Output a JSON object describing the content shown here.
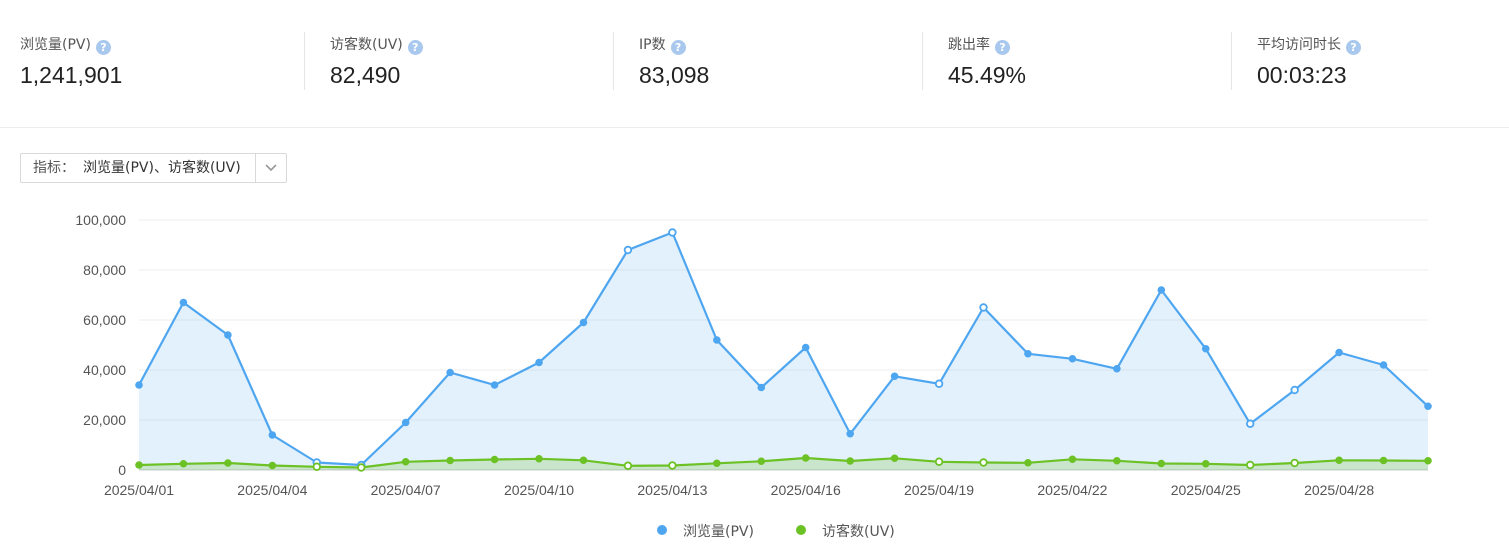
{
  "stats": [
    {
      "label": "浏览量(PV)",
      "value": "1,241,901"
    },
    {
      "label": "访客数(UV)",
      "value": "82,490"
    },
    {
      "label": "IP数",
      "value": "83,098"
    },
    {
      "label": "跳出率",
      "value": "45.49%"
    },
    {
      "label": "平均访问时长",
      "value": "00:03:23"
    }
  ],
  "help_icon_glyph": "?",
  "metric_select": {
    "prefix": "指标：",
    "value": "浏览量(PV)、访客数(UV)"
  },
  "chart_data": {
    "type": "area",
    "x": [
      "2025/04/01",
      "2025/04/02",
      "2025/04/03",
      "2025/04/04",
      "2025/04/05",
      "2025/04/06",
      "2025/04/07",
      "2025/04/08",
      "2025/04/09",
      "2025/04/10",
      "2025/04/11",
      "2025/04/12",
      "2025/04/13",
      "2025/04/14",
      "2025/04/15",
      "2025/04/16",
      "2025/04/17",
      "2025/04/18",
      "2025/04/19",
      "2025/04/20",
      "2025/04/21",
      "2025/04/22",
      "2025/04/23",
      "2025/04/24",
      "2025/04/25",
      "2025/04/26",
      "2025/04/27",
      "2025/04/28",
      "2025/04/29",
      "2025/04/30"
    ],
    "x_tick_labels": [
      "2025/04/01",
      "2025/04/04",
      "2025/04/07",
      "2025/04/10",
      "2025/04/13",
      "2025/04/16",
      "2025/04/19",
      "2025/04/22",
      "2025/04/25",
      "2025/04/28"
    ],
    "y_tick_labels": [
      "0",
      "20,000",
      "40,000",
      "60,000",
      "80,000",
      "100,000"
    ],
    "ylim": [
      0,
      100000
    ],
    "grid": true,
    "legend_position": "bottom-center",
    "series": [
      {
        "name": "浏览量(PV)",
        "color": "#4ea6f0",
        "values": [
          34000,
          67000,
          54000,
          14000,
          3000,
          2000,
          19000,
          39000,
          34000,
          43000,
          59000,
          88000,
          95000,
          52000,
          33000,
          49000,
          14500,
          37500,
          34500,
          65000,
          46500,
          44500,
          40500,
          72000,
          48500,
          18500,
          32000,
          47000,
          42000,
          25500
        ]
      },
      {
        "name": "访客数(UV)",
        "color": "#6cc125",
        "values": [
          2000,
          2500,
          2800,
          1800,
          1300,
          1000,
          3300,
          3800,
          4200,
          4500,
          3900,
          1700,
          1800,
          2700,
          3500,
          4800,
          3600,
          4700,
          3300,
          3000,
          2900,
          4300,
          3700,
          2600,
          2500,
          2000,
          2800,
          3900,
          3800,
          3700
        ]
      }
    ]
  }
}
